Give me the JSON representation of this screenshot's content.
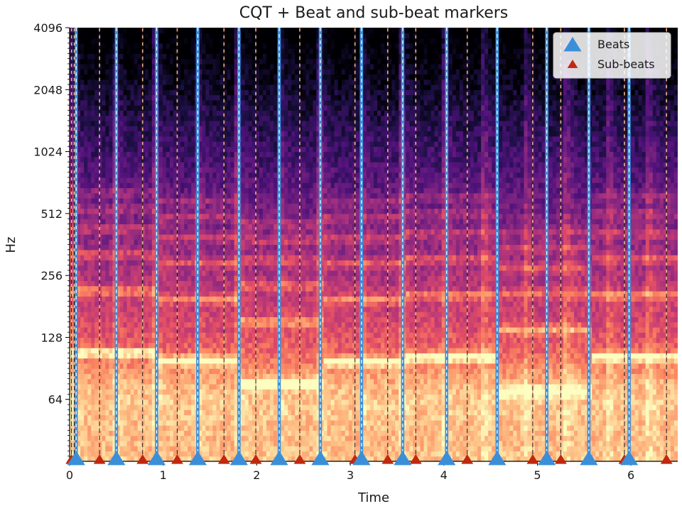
{
  "chart_data": {
    "type": "heatmap",
    "title": "CQT + Beat and sub-beat markers",
    "xlabel": "Time",
    "ylabel": "Hz",
    "xlim": [
      0,
      6.5
    ],
    "x_ticks": [
      0,
      1,
      2,
      3,
      4,
      5,
      6
    ],
    "y_scale": "log2",
    "ylim": [
      32,
      4096
    ],
    "y_ticks": [
      64,
      128,
      256,
      512,
      1024,
      2048,
      4096
    ],
    "beats": [
      0.07,
      0.5,
      0.93,
      1.37,
      1.81,
      2.24,
      2.68,
      3.12,
      3.56,
      4.03,
      4.57,
      5.1,
      5.55,
      5.98
    ],
    "sub_beats": [
      0.02,
      0.05,
      0.32,
      0.78,
      1.15,
      1.65,
      1.99,
      2.46,
      3.05,
      3.4,
      3.7,
      4.25,
      4.95,
      5.25,
      5.93,
      6.38
    ],
    "legend": [
      {
        "label": "Beats",
        "color": "#3b8fd9",
        "marker": "triangle-large"
      },
      {
        "label": "Sub-beats",
        "color": "#c0280f",
        "marker": "triangle-small"
      }
    ],
    "legend_position": "top-right",
    "colormap": "magma"
  }
}
